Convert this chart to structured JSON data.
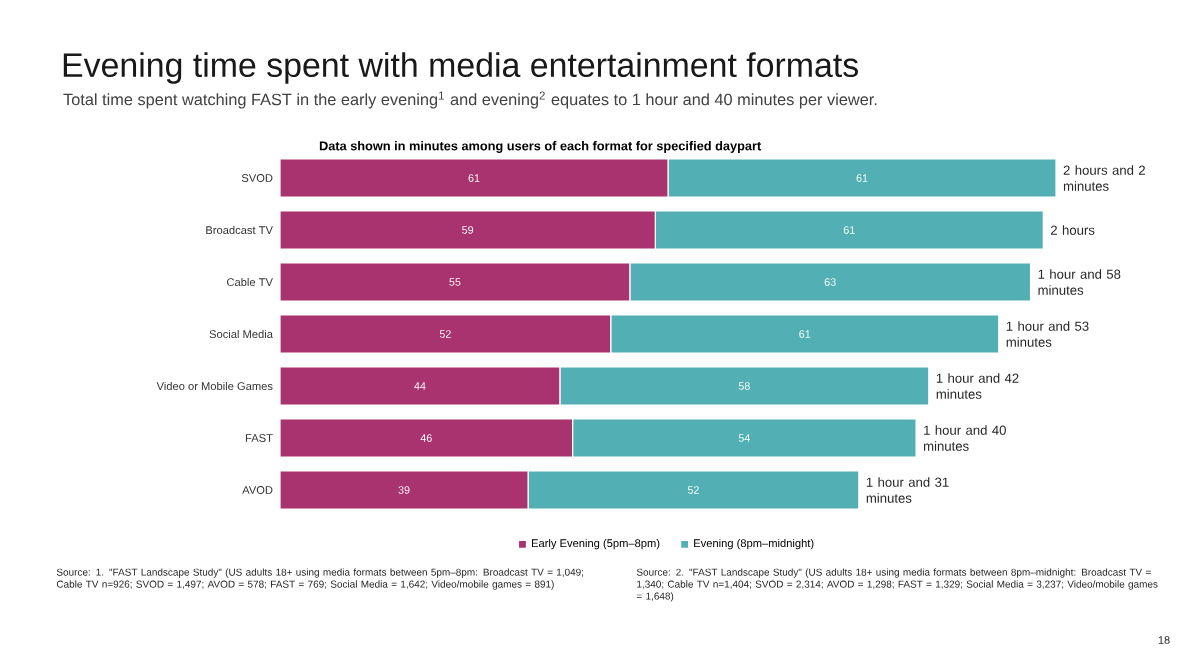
{
  "chart_data": {
    "type": "bar",
    "orientation": "horizontal",
    "stacked": true,
    "title": "Evening time spent with media entertainment formats",
    "subtitle": "Total time spent watching FAST in the early evening$^{1}$ and evening$^{2}$ equates to 1 hour and 40 minutes per viewer.",
    "categories": [
      "SVOD",
      "Broadcast TV",
      "Cable TV",
      "Social Media",
      "Video or Mobile Games",
      "FAST",
      "AVOD"
    ],
    "series": [
      {
        "name": "Early Evening (5pm–8pm)",
        "color": "#a8336e",
        "values": [
          61,
          59,
          55,
          52,
          44,
          46,
          39
        ]
      },
      {
        "name": "Evening (8pm–midnight)",
        "color": "#52b0b5",
        "values": [
          61,
          61,
          63,
          61,
          58,
          54,
          52
        ]
      }
    ],
    "data_labels": true,
    "legend": "bottom",
    "annotations": [
      "Data shown in minutes among users of each format for specified daypart",
      "Source: 1. \"FAST Landscape Study\" (US adults 18+ using media formats between 5pm–8pm: Broadcast TV = 1,049; Cable TV n=926; SVOD = 1,497; AVOD = 578; FAST = 769; Social Media = 1,642; Video/mobile games = 891)",
      "Source: 2. \"FAST Landscape Study\" (US adults 18+ using media formats between 8pm–midnight: Broadcast TV = 1,340; Cable TV n=1,404; SVOD = 2,314; AVOD = 1,298; FAST = 1,329; Social Media = 3,237; Video/mobile games = 1,648)",
      "18",
      {
        "text": "2 hours and 2 minutes",
        "x": 122,
        "y": "SVOD"
      },
      {
        "text": "2 hours",
        "x": 120,
        "y": "Broadcast TV"
      },
      {
        "text": "1 hour and 58 minutes",
        "x": 118,
        "y": "Cable TV"
      },
      {
        "text": "1 hour and 53 minutes",
        "x": 113,
        "y": "Social Media"
      },
      {
        "text": "1 hour and 42 minutes",
        "x": 102,
        "y": "Video or Mobile Games"
      },
      {
        "text": "1 hour and 40 minutes",
        "x": 100,
        "y": "FAST"
      },
      {
        "text": "1 hour and 31 minutes",
        "x": 91,
        "y": "AVOD"
      }
    ]
  }
}
